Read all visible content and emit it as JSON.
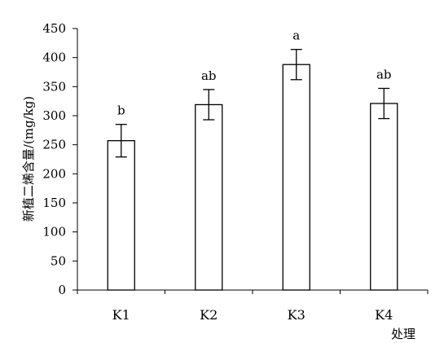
{
  "chart_data": {
    "type": "bar",
    "title": "",
    "xlabel": "处理",
    "ylabel": "新植二烯含量/(mg/kg)",
    "categories": [
      "K1",
      "K2",
      "K3",
      "K4"
    ],
    "values": [
      257,
      319,
      388,
      321
    ],
    "errors": [
      28,
      26,
      26,
      26
    ],
    "significance": [
      "b",
      "ab",
      "a",
      "ab"
    ],
    "ylim": [
      0,
      450
    ],
    "yticks": [
      "0",
      "50",
      "100",
      "150",
      "200",
      "250",
      "300",
      "350",
      "400",
      "450"
    ],
    "grid": false,
    "legend": "none",
    "bar_color": "#ffffff",
    "bar_edge_color": "#000000"
  }
}
